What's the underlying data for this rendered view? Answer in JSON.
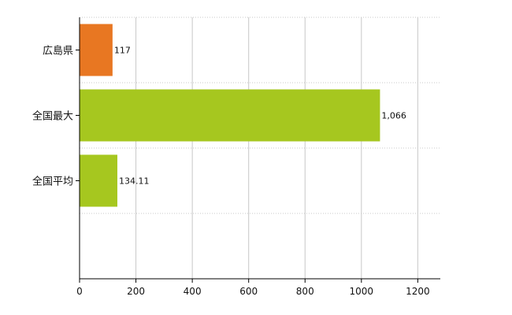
{
  "chart_data": {
    "type": "bar",
    "orientation": "horizontal",
    "categories": [
      "広島県",
      "全国最大",
      "全国平均"
    ],
    "values": [
      117,
      1066,
      134.11
    ],
    "data_labels": [
      "117",
      "1,066",
      "134.11"
    ],
    "bar_colors": [
      "#e87722",
      "#a6c71f",
      "#a6c71f"
    ],
    "xlim": [
      0,
      1280
    ],
    "xticks": [
      0,
      200,
      400,
      600,
      800,
      1000,
      1200
    ],
    "xtick_labels": [
      "0",
      "200",
      "400",
      "600",
      "800",
      "1000",
      "1200"
    ],
    "grid": true,
    "grid_style": "dotted",
    "title": "",
    "xlabel": "",
    "ylabel": ""
  }
}
